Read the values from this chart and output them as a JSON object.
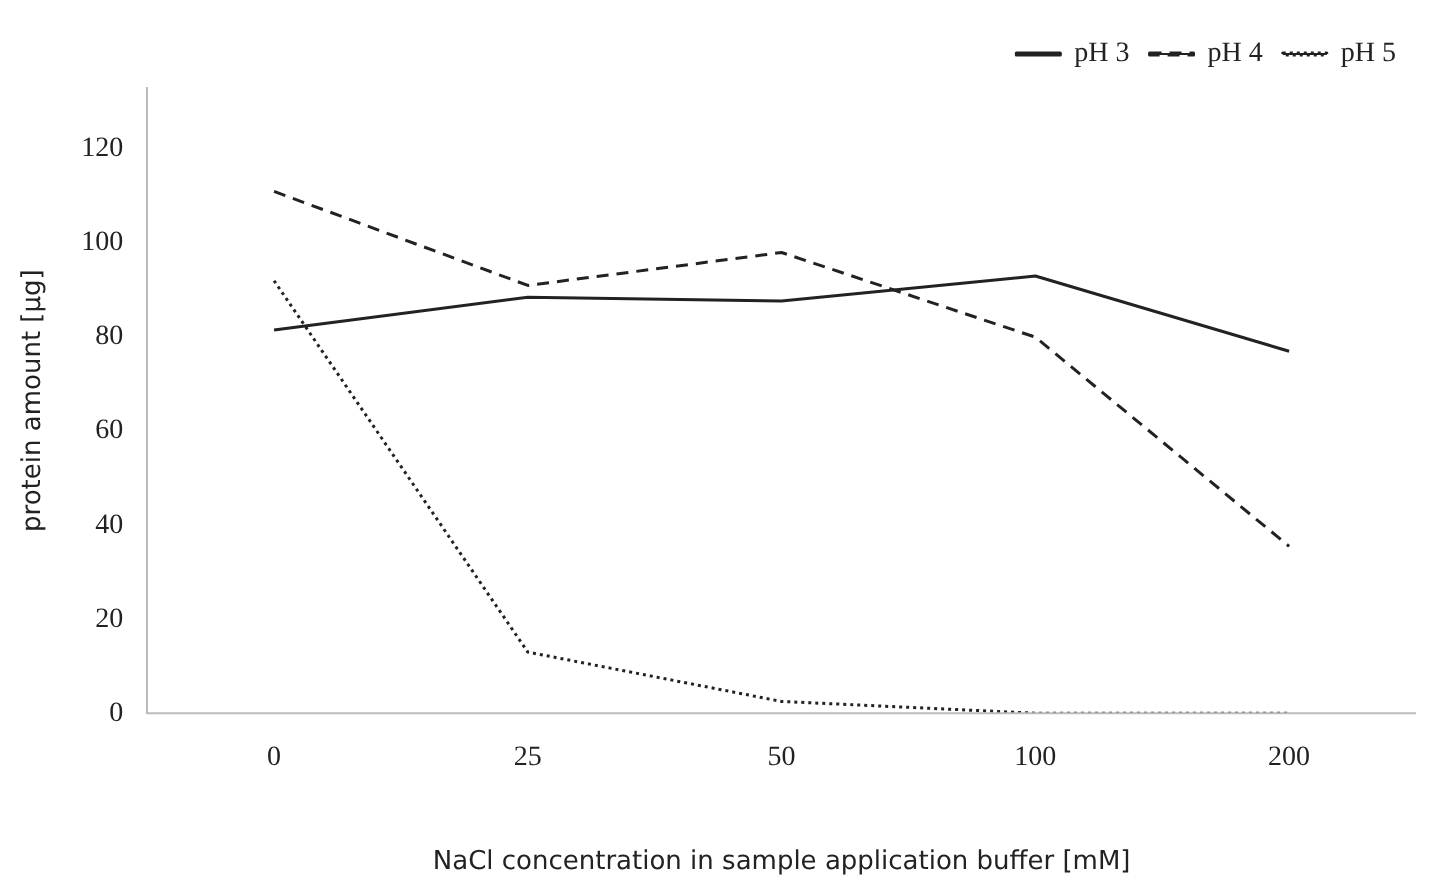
{
  "chart_data": {
    "type": "line",
    "xlabel": "NaCl concentration in sample application buffer [mM]",
    "ylabel": "protein amount [µg]",
    "categories": [
      "0",
      "25",
      "50",
      "100",
      "200"
    ],
    "series": [
      {
        "name": "pH 3",
        "color": "#222222",
        "line_style": "solid",
        "values": [
          81.5,
          88.5,
          87.7,
          93,
          77
        ]
      },
      {
        "name": "pH 4",
        "color": "#222222",
        "line_style": "dashed",
        "values": [
          111,
          91,
          98,
          80,
          35.5
        ]
      },
      {
        "name": "pH 5",
        "color": "#222222",
        "line_style": "dotted",
        "values": [
          92,
          13,
          2.5,
          0,
          0
        ]
      }
    ],
    "ylim": [
      0,
      133
    ],
    "yticks": [
      0,
      20,
      40,
      60,
      80,
      100,
      120
    ],
    "grid": false,
    "legend": "top right",
    "marker": "none"
  }
}
